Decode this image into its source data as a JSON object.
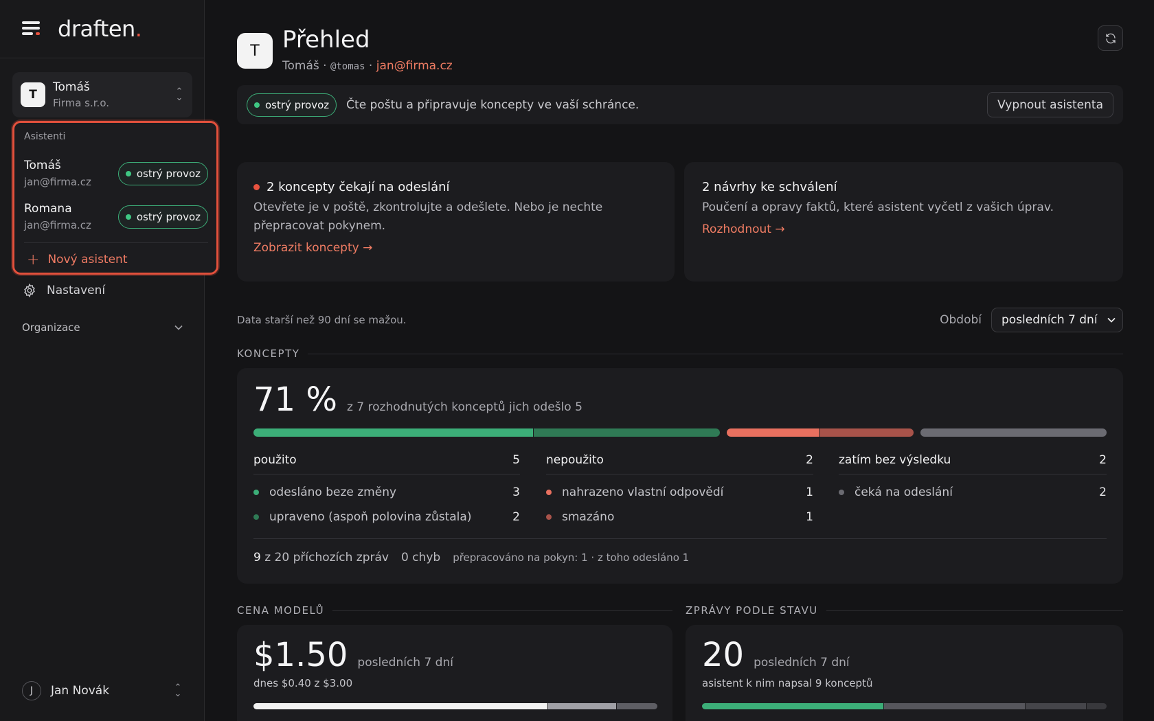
{
  "brand": {
    "name": "draften",
    "dot": "."
  },
  "account": {
    "initial": "T",
    "name": "Tomáš",
    "org": "Firma s.r.o."
  },
  "assistants_panel": {
    "heading": "Asistenti",
    "items": [
      {
        "name": "Tomáš",
        "email": "jan@firma.cz",
        "status": "ostrý provoz"
      },
      {
        "name": "Romana",
        "email": "jan@firma.cz",
        "status": "ostrý provoz"
      }
    ],
    "new_label": "Nový asistent"
  },
  "nav": {
    "settings": "Nastavení",
    "organization": "Organizace"
  },
  "user": {
    "initial": "J",
    "name": "Jan Novák"
  },
  "header": {
    "initial": "T",
    "title": "Přehled",
    "name": "Tomáš",
    "handle": "@tomas",
    "email": "jan@firma.cz"
  },
  "status_bar": {
    "status": "ostrý provoz",
    "text": "Čte poštu a připravuje koncepty ve vaší schránce.",
    "button": "Vypnout asistenta"
  },
  "cards": {
    "drafts": {
      "title": "2 koncepty čekají na odeslání",
      "body": "Otevřete je v poště, zkontrolujte a odešlete. Nebo je nechte přepracovat pokynem.",
      "link": "Zobrazit koncepty →"
    },
    "proposals": {
      "title": "2 návrhy ke schválení",
      "body": "Poučení a opravy faktů, které asistent vyčetl z vašich úprav.",
      "link": "Rozhodnout →"
    }
  },
  "meta": {
    "retention": "Data starší než 90 dní se mažou.",
    "period_label": "Období",
    "period_value": "posledních 7 dní"
  },
  "koncepty": {
    "label": "KONCEPTY",
    "percent": "71 %",
    "desc": "z 7 rozhodnutých konceptů jich odešlo 5",
    "segments": [
      {
        "value": 3,
        "color": "#3cae78"
      },
      {
        "value": 2,
        "color": "#2f7a55"
      },
      {
        "value": 1,
        "color": "#e8705f"
      },
      {
        "value": 1,
        "color": "#a8534a"
      },
      {
        "value": 2,
        "color": "#6b6b72"
      }
    ],
    "columns": [
      {
        "title": "použito",
        "total": "5",
        "items": [
          {
            "label": "odesláno beze změny",
            "value": "3",
            "color": "#3cae78"
          },
          {
            "label": "upraveno (aspoň polovina zůstala)",
            "value": "2",
            "color": "#2f7a55"
          }
        ]
      },
      {
        "title": "nepoužito",
        "total": "2",
        "items": [
          {
            "label": "nahrazeno vlastní odpovědí",
            "value": "1",
            "color": "#e8705f"
          },
          {
            "label": "smazáno",
            "value": "1",
            "color": "#a8534a"
          }
        ]
      },
      {
        "title": "zatím bez výsledku",
        "total": "2",
        "items": [
          {
            "label": "čeká na odeslání",
            "value": "2",
            "color": "#6b6b72"
          }
        ]
      }
    ],
    "footer": {
      "incoming_count": "9",
      "incoming_text": "z 20 příchozích zpráv",
      "errors": "0 chyb",
      "reworked": "přepracováno na pokyn: 1 · z toho odesláno 1"
    }
  },
  "cost": {
    "label": "CENA MODELŮ",
    "amount": "$1.50",
    "period": "posledních 7 dní",
    "today": "dnes $0.40 z $3.00",
    "segments": [
      {
        "value": 0.73,
        "color": "#f2f2f2"
      },
      {
        "value": 0.17,
        "color": "#a0a0a6"
      },
      {
        "value": 0.1,
        "color": "#5e5e64"
      }
    ]
  },
  "messages": {
    "label": "ZPRÁVY PODLE STAVU",
    "count": "20",
    "period": "posledních 7 dní",
    "sub": "asistent k nim napsal 9 konceptů",
    "segments": [
      {
        "value": 9,
        "color": "#3cae78"
      },
      {
        "value": 7,
        "color": "#56565c"
      },
      {
        "value": 3,
        "color": "#45454a"
      },
      {
        "value": 1,
        "color": "#38383c"
      }
    ]
  }
}
